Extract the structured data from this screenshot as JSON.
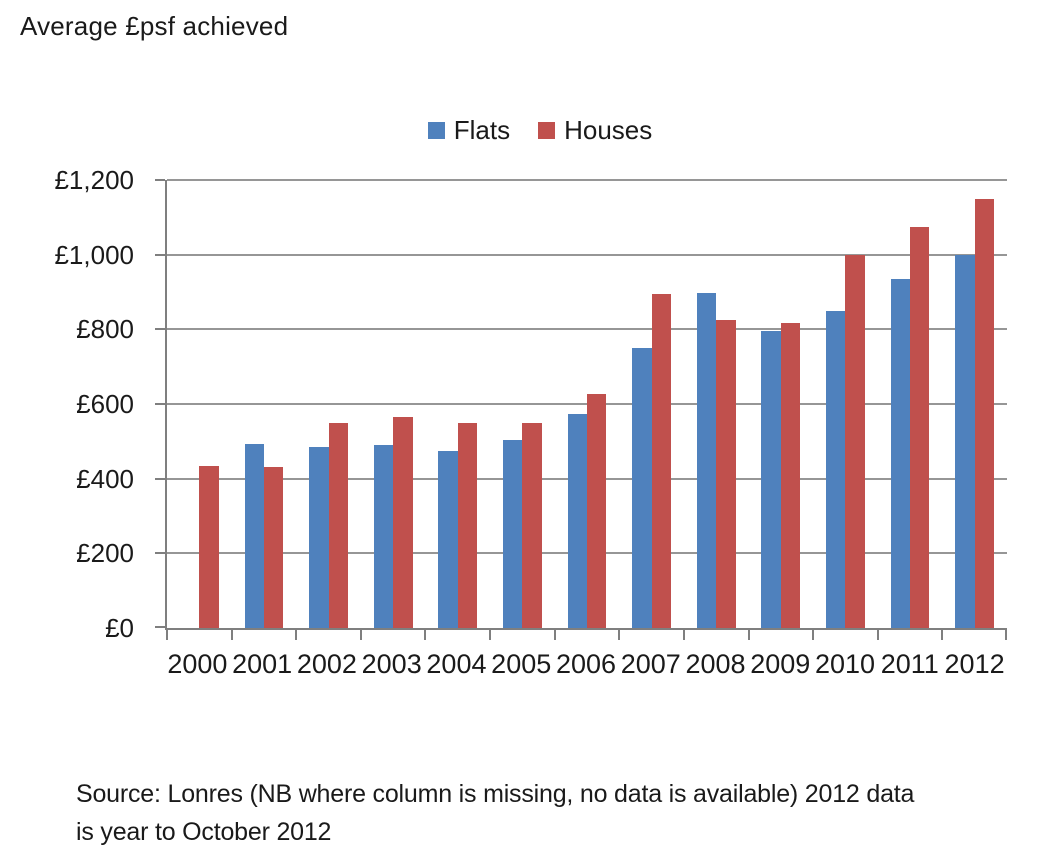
{
  "chart_data": {
    "type": "bar",
    "title": "Average £psf achieved",
    "categories": [
      "2000",
      "2001",
      "2002",
      "2003",
      "2004",
      "2005",
      "2006",
      "2007",
      "2008",
      "2009",
      "2010",
      "2011",
      "2012"
    ],
    "series": [
      {
        "name": "Flats",
        "color": "#4F81BD",
        "values": [
          null,
          492,
          484,
          490,
          473,
          503,
          573,
          750,
          898,
          795,
          848,
          935,
          1000
        ]
      },
      {
        "name": "Houses",
        "color": "#C0504D",
        "values": [
          435,
          432,
          548,
          565,
          548,
          548,
          627,
          895,
          825,
          817,
          1000,
          1075,
          1150
        ]
      }
    ],
    "ylim": [
      0,
      1200
    ],
    "ytick_step": 200,
    "ytick_labels": [
      "£0",
      "£200",
      "£400",
      "£600",
      "£800",
      "£1,000",
      "£1,200"
    ],
    "grid": true,
    "legend_position": "top-center",
    "note_lines": [
      "Source: Lonres (NB where column is missing, no data is available) 2012 data",
      "is year to October 2012"
    ]
  },
  "colors": {
    "axis": "#7f7f7f",
    "gridline": "#969696",
    "flats": "#4F81BD",
    "houses": "#C0504D"
  }
}
